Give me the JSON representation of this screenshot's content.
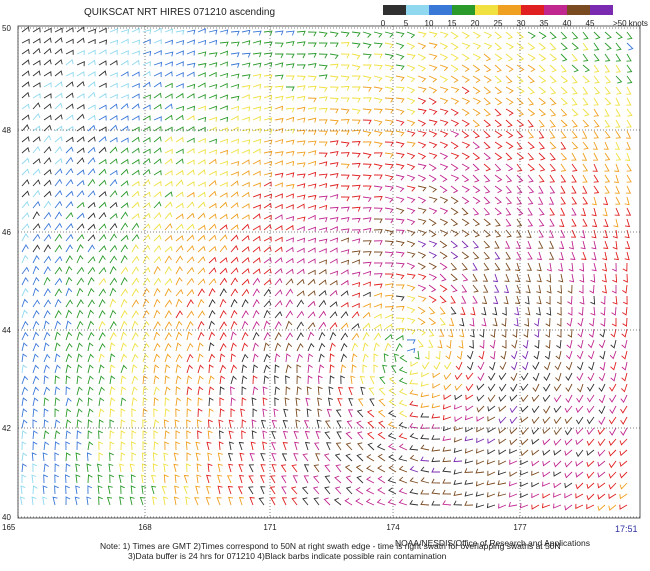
{
  "title": "QUIKSCAT NRT HIRES 071210 ascending",
  "legend": {
    "labels": [
      "0",
      "5",
      "10",
      "15",
      "20",
      "25",
      "30",
      "35",
      "40",
      "45",
      ">50 knots"
    ],
    "colors": [
      "#303030",
      "#8fd8f0",
      "#3a78d8",
      "#2a9a2a",
      "#f0e040",
      "#f0a020",
      "#e02020",
      "#c02890",
      "#7a4a20",
      "#7a2ab0"
    ]
  },
  "lat_labels": [
    "50",
    "48",
    "46",
    "44",
    "42",
    "40"
  ],
  "lon_labels": [
    "165",
    "168",
    "171",
    "174",
    "177"
  ],
  "time": "17:51",
  "notes": [
    "Note: 1) Times are GMT 2)Times correspond to 50N at right swath edge - time is right swath for overlapping swaths at 50N",
    "3)Data buffer is 24 hrs for 071210 4)Black barbs indicate possible rain contamination"
  ],
  "credit": "NOAA/NESDIS/Office of Research and Applications"
}
